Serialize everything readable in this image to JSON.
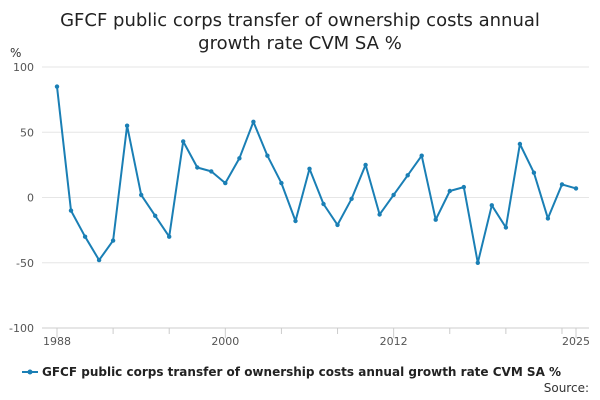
{
  "chart_data": {
    "type": "line",
    "title_lines": [
      "GFCF public corps transfer of ownership costs annual",
      "growth rate CVM SA %"
    ],
    "ylabel": "%",
    "ylim": [
      -100,
      100
    ],
    "y_ticks": [
      -100,
      -50,
      0,
      50,
      100
    ],
    "x_tick_labels": [
      "1988",
      "2000",
      "2012",
      "2025"
    ],
    "grid": true,
    "legend_position": "bottom",
    "source_label": "Source:",
    "colors": {
      "series": "#1a7fb5",
      "grid": "#e6e6e6",
      "axis": "#cccccc"
    },
    "series": [
      {
        "name": "GFCF public corps transfer of ownership costs annual growth rate CVM SA %",
        "x": [
          1988,
          1989,
          1990,
          1991,
          1992,
          1993,
          1994,
          1995,
          1996,
          1997,
          1998,
          1999,
          2000,
          2001,
          2002,
          2003,
          2004,
          2005,
          2006,
          2007,
          2008,
          2009,
          2010,
          2011,
          2012,
          2013,
          2014,
          2015,
          2016,
          2017,
          2018,
          2019,
          2020,
          2021,
          2022,
          2023,
          2024,
          2025
        ],
        "values": [
          85,
          -10,
          -30,
          -48,
          -33,
          55,
          2,
          -14,
          -30,
          43,
          23,
          20,
          11,
          30,
          58,
          32,
          11,
          -18,
          22,
          -5,
          -21,
          -1,
          25,
          -13,
          2,
          17,
          32,
          -17,
          5,
          8,
          -50,
          -6,
          -23,
          41,
          19,
          -16,
          10,
          7
        ]
      }
    ]
  }
}
